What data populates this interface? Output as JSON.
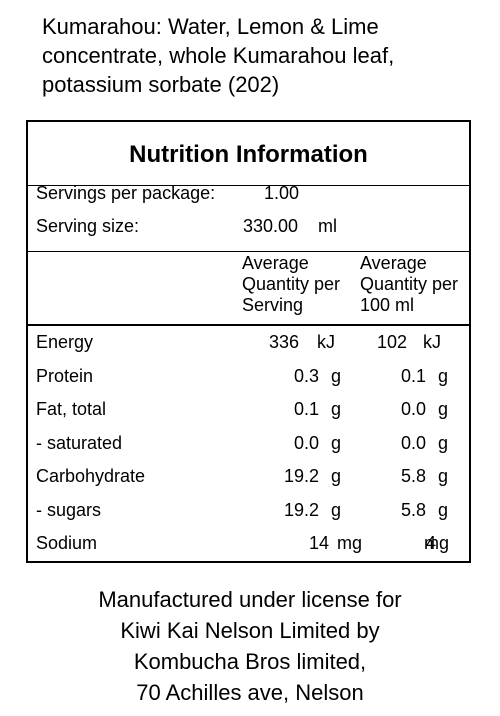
{
  "ingredients": {
    "line1": "Kumarahou: Water, Lemon & Lime",
    "line2": "concentrate, whole Kumarahou leaf,",
    "line3": "potassium sorbate (202)"
  },
  "panel": {
    "title": "Nutrition Information",
    "servings_label": "Servings per package:",
    "servings_value": "1.00",
    "serving_size_label": "Serving size:",
    "serving_size_value": "330.00",
    "serving_size_unit": "ml",
    "col1": {
      "line1": "Average",
      "line2": "Quantity per",
      "line3": "Serving"
    },
    "col2": {
      "line1": "Average",
      "line2": "Quantity per",
      "line3": "100 ml"
    },
    "rows": [
      {
        "label": "Energy",
        "serving": "336",
        "serving_unit": "kJ",
        "per100": "102",
        "per100_unit": "kJ"
      },
      {
        "label": "Protein",
        "serving": "0.3",
        "serving_unit": "g",
        "per100": "0.1",
        "per100_unit": "g"
      },
      {
        "label": "Fat, total",
        "serving": "0.1",
        "serving_unit": "g",
        "per100": "0.0",
        "per100_unit": "g"
      },
      {
        "label": "- saturated",
        "serving": "0.0",
        "serving_unit": "g",
        "per100": "0.0",
        "per100_unit": "g"
      },
      {
        "label": "Carbohydrate",
        "serving": "19.2",
        "serving_unit": "g",
        "per100": "5.8",
        "per100_unit": "g"
      },
      {
        "label": "- sugars",
        "serving": "19.2",
        "serving_unit": "g",
        "per100": "5.8",
        "per100_unit": "g"
      },
      {
        "label": "Sodium",
        "serving": "14",
        "serving_unit": "mg",
        "per100": "4",
        "per100_unit": "mg"
      }
    ]
  },
  "footer": {
    "line1": "Manufactured under license for",
    "line2": "Kiwi Kai Nelson Limited by",
    "line3": "Kombucha Bros limited,",
    "line4": "70 Achilles ave, Nelson"
  }
}
